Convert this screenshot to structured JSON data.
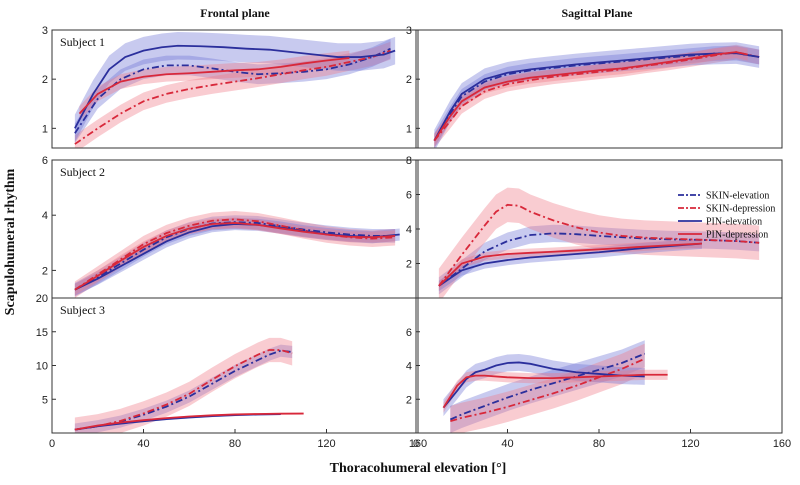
{
  "titles": {
    "frontal": "Frontal plane",
    "sagittal": "Sagittal Plane"
  },
  "ylabel": "Scapulohumeral rhythm",
  "xlabel": "Thoracohumeral elevation [°]",
  "legend": [
    "SKIN-elevation",
    "SKIN-depression",
    "PIN-elevation",
    "PIN-depression"
  ],
  "colors": {
    "blue": "#2b2f9c",
    "red": "#d8283a",
    "blue_band": "#6e74d6",
    "red_band": "#f07a86"
  },
  "chart_data": [
    {
      "type": "line",
      "panel": "frontal",
      "subject": "Subject 1",
      "xlim": [
        0,
        160
      ],
      "ylim": [
        0.6,
        3
      ],
      "yticks": [
        1,
        2,
        3
      ],
      "xticks": [],
      "series": [
        {
          "name": "SKIN-elevation",
          "x": [
            10,
            20,
            30,
            40,
            50,
            60,
            70,
            80,
            90,
            100,
            110,
            120,
            130,
            140,
            148
          ],
          "y": [
            0.9,
            1.6,
            2.0,
            2.2,
            2.28,
            2.28,
            2.22,
            2.15,
            2.1,
            2.12,
            2.15,
            2.2,
            2.3,
            2.45,
            2.62
          ],
          "sd": 0.2
        },
        {
          "name": "SKIN-depression",
          "x": [
            10,
            20,
            30,
            40,
            50,
            60,
            70,
            80,
            90,
            100,
            110,
            120,
            130,
            140,
            148
          ],
          "y": [
            0.68,
            1.0,
            1.3,
            1.55,
            1.7,
            1.8,
            1.88,
            1.95,
            2.02,
            2.1,
            2.18,
            2.25,
            2.35,
            2.45,
            2.58
          ],
          "sd": 0.18
        },
        {
          "name": "PIN-elevation",
          "x": [
            10,
            18,
            25,
            32,
            40,
            48,
            55,
            65,
            75,
            85,
            95,
            105,
            115,
            125,
            135,
            145,
            150
          ],
          "y": [
            1.0,
            1.7,
            2.2,
            2.45,
            2.58,
            2.65,
            2.68,
            2.67,
            2.65,
            2.62,
            2.6,
            2.55,
            2.5,
            2.45,
            2.45,
            2.5,
            2.58
          ],
          "sd": 0.28
        },
        {
          "name": "PIN-depression",
          "x": [
            12,
            20,
            30,
            40,
            50,
            60,
            70,
            80,
            90,
            100,
            110,
            120,
            130
          ],
          "y": [
            1.3,
            1.7,
            1.95,
            2.05,
            2.1,
            2.12,
            2.15,
            2.18,
            2.2,
            2.25,
            2.32,
            2.38,
            2.43
          ],
          "sd": 0.15
        }
      ]
    },
    {
      "type": "line",
      "panel": "sagittal",
      "subject": "",
      "xlim": [
        0,
        160
      ],
      "ylim": [
        0.6,
        3
      ],
      "yticks": [
        1,
        2,
        3
      ],
      "xticks": [],
      "series": [
        {
          "name": "SKIN-elevation",
          "x": [
            8,
            15,
            20,
            30,
            40,
            50,
            60,
            70,
            80,
            90,
            100,
            110,
            120,
            130,
            140,
            150
          ],
          "y": [
            0.75,
            1.3,
            1.65,
            1.95,
            2.1,
            2.18,
            2.23,
            2.28,
            2.32,
            2.36,
            2.4,
            2.44,
            2.48,
            2.52,
            2.53,
            2.45
          ],
          "sd": 0.15
        },
        {
          "name": "SKIN-depression",
          "x": [
            8,
            15,
            20,
            30,
            40,
            50,
            60,
            70,
            80,
            90,
            100,
            110,
            120,
            130,
            140,
            150
          ],
          "y": [
            0.75,
            1.15,
            1.45,
            1.75,
            1.9,
            1.98,
            2.05,
            2.1,
            2.15,
            2.2,
            2.27,
            2.33,
            2.4,
            2.48,
            2.55,
            2.45
          ],
          "sd": 0.15
        },
        {
          "name": "PIN-elevation",
          "x": [
            8,
            15,
            20,
            30,
            40,
            50,
            60,
            70,
            80,
            90,
            100,
            110,
            120,
            130,
            140,
            150
          ],
          "y": [
            0.75,
            1.35,
            1.7,
            2.0,
            2.13,
            2.2,
            2.25,
            2.3,
            2.34,
            2.38,
            2.42,
            2.46,
            2.5,
            2.52,
            2.53,
            2.45
          ],
          "sd": 0.22
        },
        {
          "name": "PIN-depression",
          "x": [
            8,
            15,
            20,
            30,
            40,
            50,
            60,
            70,
            80,
            90,
            100,
            110,
            120,
            130,
            140,
            145
          ],
          "y": [
            0.75,
            1.25,
            1.55,
            1.83,
            1.95,
            2.03,
            2.08,
            2.13,
            2.18,
            2.22,
            2.28,
            2.35,
            2.42,
            2.5,
            2.55,
            2.5
          ],
          "sd": 0.12
        }
      ]
    },
    {
      "type": "line",
      "panel": "frontal",
      "subject": "Subject 2",
      "xlim": [
        0,
        160
      ],
      "ylim": [
        1,
        6
      ],
      "yticks": [
        2,
        4,
        6
      ],
      "xticks": [],
      "series": [
        {
          "name": "SKIN-elevation",
          "x": [
            10,
            20,
            30,
            40,
            50,
            60,
            70,
            80,
            90,
            100,
            110,
            120,
            130,
            140,
            150
          ],
          "y": [
            1.3,
            1.75,
            2.25,
            2.75,
            3.2,
            3.5,
            3.7,
            3.75,
            3.72,
            3.6,
            3.48,
            3.38,
            3.3,
            3.25,
            3.25
          ],
          "sd": 0.25
        },
        {
          "name": "SKIN-depression",
          "x": [
            10,
            20,
            30,
            40,
            50,
            60,
            70,
            80,
            90,
            100,
            110,
            120,
            130,
            140,
            150
          ],
          "y": [
            1.3,
            1.85,
            2.4,
            2.95,
            3.35,
            3.62,
            3.8,
            3.85,
            3.78,
            3.62,
            3.45,
            3.3,
            3.2,
            3.15,
            3.2
          ],
          "sd": 0.3
        },
        {
          "name": "PIN-elevation",
          "x": [
            10,
            20,
            30,
            40,
            50,
            60,
            70,
            80,
            90,
            100,
            110,
            120,
            130,
            140,
            152
          ],
          "y": [
            1.3,
            1.7,
            2.15,
            2.6,
            3.05,
            3.38,
            3.6,
            3.68,
            3.65,
            3.55,
            3.42,
            3.32,
            3.25,
            3.2,
            3.3
          ],
          "sd": 0.22
        },
        {
          "name": "PIN-depression",
          "x": [
            10,
            20,
            30,
            40,
            50,
            60,
            70,
            80,
            90,
            100,
            110,
            120,
            130,
            140,
            150
          ],
          "y": [
            1.3,
            1.8,
            2.35,
            2.85,
            3.25,
            3.52,
            3.68,
            3.72,
            3.65,
            3.52,
            3.4,
            3.3,
            3.22,
            3.2,
            3.25
          ],
          "sd": 0.2
        }
      ]
    },
    {
      "type": "line",
      "panel": "sagittal",
      "subject": "",
      "xlim": [
        0,
        160
      ],
      "ylim": [
        0,
        8
      ],
      "yticks": [
        2,
        4,
        6,
        8
      ],
      "xticks": [],
      "series": [
        {
          "name": "SKIN-elevation",
          "x": [
            10,
            20,
            30,
            40,
            50,
            60,
            70,
            80,
            90,
            100,
            110,
            120,
            130,
            140,
            150
          ],
          "y": [
            0.7,
            1.7,
            2.7,
            3.3,
            3.65,
            3.75,
            3.7,
            3.6,
            3.52,
            3.45,
            3.4,
            3.38,
            3.35,
            3.3,
            3.2
          ],
          "sd": 0.5
        },
        {
          "name": "SKIN-depression",
          "x": [
            10,
            20,
            30,
            35,
            40,
            45,
            50,
            60,
            70,
            80,
            90,
            100,
            110,
            120,
            130,
            140,
            150
          ],
          "y": [
            0.7,
            2.5,
            4.2,
            5.0,
            5.4,
            5.35,
            5.0,
            4.5,
            4.1,
            3.8,
            3.6,
            3.5,
            3.45,
            3.4,
            3.35,
            3.3,
            3.2
          ],
          "sd": 1.0
        },
        {
          "name": "PIN-elevation",
          "x": [
            10,
            20,
            30,
            40,
            50,
            60,
            70,
            80,
            90,
            100,
            110,
            120,
            125
          ],
          "y": [
            0.7,
            1.6,
            2.0,
            2.2,
            2.35,
            2.45,
            2.55,
            2.65,
            2.78,
            2.9,
            3.0,
            3.1,
            3.15
          ],
          "sd": 0.3
        },
        {
          "name": "PIN-depression",
          "x": [
            10,
            20,
            30,
            40,
            50,
            60,
            70,
            80,
            90,
            100,
            110,
            120,
            125
          ],
          "y": [
            0.7,
            2.0,
            2.4,
            2.55,
            2.62,
            2.68,
            2.75,
            2.82,
            2.9,
            2.98,
            3.05,
            3.12,
            3.15
          ],
          "sd": 0.25
        }
      ]
    },
    {
      "type": "line",
      "panel": "frontal",
      "subject": "Subject 3",
      "xlim": [
        0,
        160
      ],
      "ylim": [
        0,
        20
      ],
      "yticks": [
        5,
        10,
        15,
        20
      ],
      "xticks": [
        0,
        40,
        80,
        120,
        160
      ],
      "series": [
        {
          "name": "SKIN-elevation",
          "x": [
            10,
            20,
            30,
            40,
            50,
            60,
            70,
            80,
            90,
            95,
            100,
            105
          ],
          "y": [
            0.5,
            1.0,
            1.7,
            2.7,
            3.9,
            5.4,
            7.3,
            9.2,
            10.8,
            11.6,
            12.2,
            12.0
          ],
          "sd": 0.9
        },
        {
          "name": "SKIN-depression",
          "x": [
            10,
            20,
            30,
            40,
            50,
            60,
            70,
            80,
            90,
            95,
            100,
            105
          ],
          "y": [
            0.5,
            1.0,
            1.8,
            2.9,
            4.2,
            5.8,
            7.9,
            9.9,
            11.6,
            12.3,
            12.3,
            11.8
          ],
          "sd": 1.8
        },
        {
          "name": "PIN-elevation",
          "x": [
            10,
            20,
            30,
            40,
            50,
            60,
            70,
            80,
            90,
            100
          ],
          "y": [
            0.5,
            1.0,
            1.4,
            1.75,
            2.05,
            2.3,
            2.5,
            2.65,
            2.75,
            2.8
          ],
          "sd": 0.15
        },
        {
          "name": "PIN-depression",
          "x": [
            10,
            20,
            30,
            40,
            50,
            60,
            70,
            80,
            90,
            100,
            110
          ],
          "y": [
            0.5,
            1.1,
            1.55,
            1.9,
            2.2,
            2.45,
            2.62,
            2.75,
            2.82,
            2.86,
            2.88
          ],
          "sd": 0.12
        }
      ]
    },
    {
      "type": "line",
      "panel": "sagittal",
      "subject": "",
      "xlim": [
        0,
        160
      ],
      "ylim": [
        0,
        8
      ],
      "yticks": [
        2,
        4,
        6
      ],
      "xticks": [
        0,
        40,
        80,
        120,
        160
      ],
      "series": [
        {
          "name": "SKIN-elevation",
          "x": [
            15,
            20,
            30,
            40,
            50,
            60,
            70,
            80,
            90,
            100
          ],
          "y": [
            0.8,
            1.1,
            1.6,
            2.1,
            2.55,
            2.95,
            3.35,
            3.75,
            4.15,
            4.7
          ],
          "sd": 0.8
        },
        {
          "name": "SKIN-depression",
          "x": [
            15,
            20,
            30,
            40,
            50,
            60,
            70,
            80,
            90,
            100
          ],
          "y": [
            0.7,
            0.9,
            1.2,
            1.55,
            1.95,
            2.35,
            2.8,
            3.3,
            3.8,
            4.4
          ],
          "sd": 0.9
        },
        {
          "name": "PIN-elevation",
          "x": [
            12,
            18,
            22,
            26,
            30,
            35,
            40,
            45,
            50,
            55,
            60,
            70,
            80,
            90,
            100
          ],
          "y": [
            1.5,
            2.5,
            3.2,
            3.6,
            3.75,
            4.0,
            4.15,
            4.18,
            4.1,
            3.95,
            3.8,
            3.6,
            3.5,
            3.4,
            3.35
          ],
          "sd": 0.5
        },
        {
          "name": "PIN-depression",
          "x": [
            12,
            18,
            22,
            26,
            30,
            40,
            50,
            60,
            70,
            80,
            90,
            100,
            110
          ],
          "y": [
            1.5,
            2.8,
            3.3,
            3.4,
            3.4,
            3.3,
            3.25,
            3.25,
            3.3,
            3.35,
            3.4,
            3.45,
            3.45
          ],
          "sd": 0.3
        }
      ]
    }
  ]
}
